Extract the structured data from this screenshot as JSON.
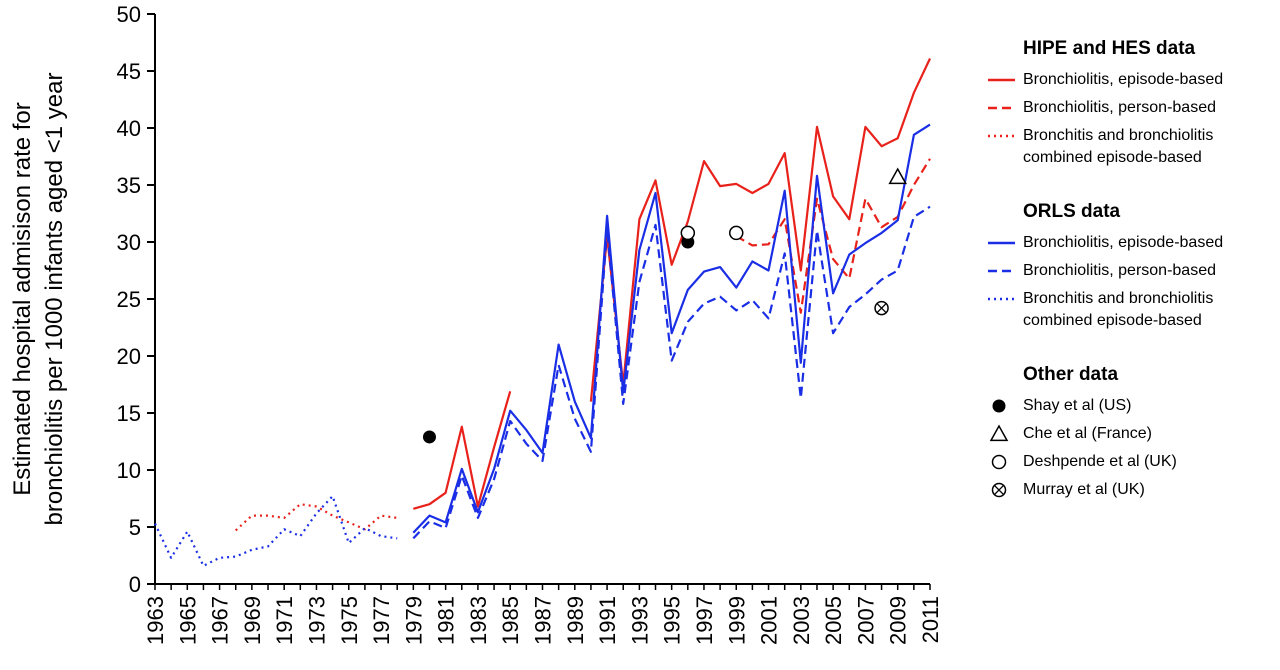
{
  "chart_data": {
    "type": "line",
    "title": "",
    "ylabel_lines": [
      "Estimated hospital admisison rate for",
      "bronchiolitis per 1000 infants aged <1 year"
    ],
    "xlabel": "",
    "xlim": [
      1963,
      2011
    ],
    "ylim": [
      0,
      50
    ],
    "yticks": [
      0,
      5,
      10,
      15,
      20,
      25,
      30,
      35,
      40,
      45,
      50
    ],
    "xticks": [
      "1963",
      "1965",
      "1967",
      "1969",
      "1971",
      "1973",
      "1975",
      "1977",
      "1979",
      "1981",
      "1983",
      "1985",
      "1987",
      "1989",
      "1991",
      "1993",
      "1995",
      "1997",
      "1999",
      "2001",
      "2003",
      "2005",
      "2007",
      "2009",
      "2011"
    ],
    "grid": false,
    "legend_position": "right",
    "legend_groups": [
      {
        "title": "HIPE and HES data",
        "entries": [
          {
            "label": "Bronchiolitis, episode-based",
            "series": "hipe_episode"
          },
          {
            "label": "Bronchiolitis, person-based",
            "series": "hipe_person"
          },
          {
            "label": "Bronchitis and bronchiolitis combined episode-based",
            "series": "hipe_combined"
          }
        ]
      },
      {
        "title": "ORLS data",
        "entries": [
          {
            "label": "Bronchiolitis, episode-based",
            "series": "orls_episode"
          },
          {
            "label": "Bronchiolitis, person-based",
            "series": "orls_person"
          },
          {
            "label": "Bronchitis and bronchiolitis combined episode-based",
            "series": "orls_combined"
          }
        ]
      },
      {
        "title": "Other data",
        "entries": [
          {
            "label": "Shay et al (US)",
            "series": "shay"
          },
          {
            "label": "Che et al (France)",
            "series": "che"
          },
          {
            "label": "Deshpende et al (UK)",
            "series": "deshpende"
          },
          {
            "label": "Murray et al (UK)",
            "series": "murray"
          }
        ]
      }
    ],
    "series": [
      {
        "id": "hipe_episode",
        "kind": "line",
        "color": "#e8221b",
        "dash": "solid",
        "x": [
          1979,
          1980,
          1981,
          1982,
          1983,
          1984,
          1985
        ],
        "y": [
          6.6,
          7.0,
          8.0,
          13.8,
          6.8,
          12.0,
          16.9
        ]
      },
      {
        "id": "hipe_episode_b",
        "kind": "line",
        "color": "#e8221b",
        "dash": "solid",
        "x": [
          1990,
          1991,
          1992,
          1993,
          1994,
          1995,
          1996,
          1997,
          1998,
          1999,
          2000,
          2001,
          2002,
          2003,
          2004,
          2005,
          2006,
          2007,
          2008,
          2009,
          2010,
          2011
        ],
        "y": [
          16.0,
          30.5,
          17.5,
          32.0,
          35.4,
          28.0,
          31.8,
          37.1,
          34.9,
          35.1,
          34.3,
          35.1,
          37.8,
          27.5,
          40.1,
          34.0,
          32.0,
          40.1,
          38.4,
          39.1,
          43.1,
          46.1
        ]
      },
      {
        "id": "hipe_person",
        "kind": "line",
        "color": "#e8221b",
        "dash": "dashed",
        "x": [
          1999,
          2000,
          2001,
          2002,
          2003,
          2004,
          2005,
          2006,
          2007,
          2008,
          2009,
          2010,
          2011
        ],
        "y": [
          30.5,
          29.7,
          29.8,
          32.0,
          23.8,
          33.8,
          28.5,
          26.8,
          33.8,
          31.3,
          32.2,
          35.0,
          37.3
        ]
      },
      {
        "id": "hipe_combined",
        "kind": "line",
        "color": "#e8221b",
        "dash": "dotted",
        "x": [
          1968,
          1969,
          1970,
          1971,
          1972,
          1973,
          1974,
          1975,
          1976,
          1977,
          1978
        ],
        "y": [
          4.7,
          6.0,
          6.0,
          5.8,
          7.0,
          6.8,
          6.0,
          5.4,
          4.8,
          6.0,
          5.8
        ]
      },
      {
        "id": "orls_episode",
        "kind": "line",
        "color": "#1a2ee6",
        "dash": "solid",
        "x": [
          1979,
          1980,
          1981,
          1982,
          1983,
          1984,
          1985,
          1986,
          1987,
          1988,
          1989,
          1990,
          1991,
          1992,
          1993,
          1994,
          1995,
          1996,
          1997,
          1998,
          1999,
          2000,
          2001,
          2002,
          2003,
          2004,
          2005,
          2006,
          2007,
          2008,
          2009,
          2010,
          2011
        ],
        "y": [
          4.5,
          6.0,
          5.4,
          10.1,
          6.3,
          10.1,
          15.2,
          13.5,
          11.5,
          21.0,
          16.0,
          12.8,
          32.3,
          16.8,
          29.3,
          34.3,
          22.0,
          25.8,
          27.4,
          27.8,
          26.0,
          28.3,
          27.5,
          34.5,
          19.4,
          35.8,
          25.5,
          28.9,
          29.9,
          30.8,
          31.9,
          39.4,
          40.3
        ]
      },
      {
        "id": "orls_person",
        "kind": "line",
        "color": "#1a2ee6",
        "dash": "dashed",
        "x": [
          1979,
          1980,
          1981,
          1982,
          1983,
          1984,
          1985,
          1986,
          1987,
          1988,
          1989,
          1990,
          1991,
          1992,
          1993,
          1994,
          1995,
          1996,
          1997,
          1998,
          1999,
          2000,
          2001,
          2002,
          2003,
          2004,
          2005,
          2006,
          2007,
          2008,
          2009,
          2010,
          2011
        ],
        "y": [
          4.0,
          5.5,
          4.9,
          9.5,
          5.8,
          9.2,
          14.3,
          12.3,
          10.8,
          19.2,
          14.5,
          11.6,
          31.2,
          15.8,
          26.5,
          31.5,
          19.6,
          23.0,
          24.6,
          25.2,
          24.0,
          24.9,
          23.3,
          29.0,
          16.3,
          31.0,
          22.0,
          24.3,
          25.4,
          26.7,
          27.5,
          32.2,
          33.1
        ]
      },
      {
        "id": "orls_combined",
        "kind": "line",
        "color": "#1a2ee6",
        "dash": "dotted",
        "x": [
          1963,
          1964,
          1965,
          1966,
          1967,
          1968,
          1969,
          1970,
          1971,
          1972,
          1973,
          1974,
          1975,
          1976,
          1977,
          1978
        ],
        "y": [
          5.3,
          2.3,
          4.6,
          1.6,
          2.3,
          2.4,
          3.0,
          3.3,
          4.8,
          4.2,
          6.2,
          7.7,
          3.6,
          4.9,
          4.2,
          4.0
        ]
      },
      {
        "id": "shay",
        "kind": "marker",
        "marker": "filled-circle",
        "points": [
          [
            1980,
            12.9
          ],
          [
            1996,
            30.0
          ]
        ]
      },
      {
        "id": "che",
        "kind": "marker",
        "marker": "triangle",
        "points": [
          [
            2009,
            35.7
          ]
        ]
      },
      {
        "id": "deshpende",
        "kind": "marker",
        "marker": "open-circle",
        "points": [
          [
            1996,
            30.8
          ],
          [
            1999,
            30.8
          ]
        ]
      },
      {
        "id": "murray",
        "kind": "marker",
        "marker": "circle-x",
        "points": [
          [
            2008,
            24.2
          ]
        ]
      }
    ]
  }
}
